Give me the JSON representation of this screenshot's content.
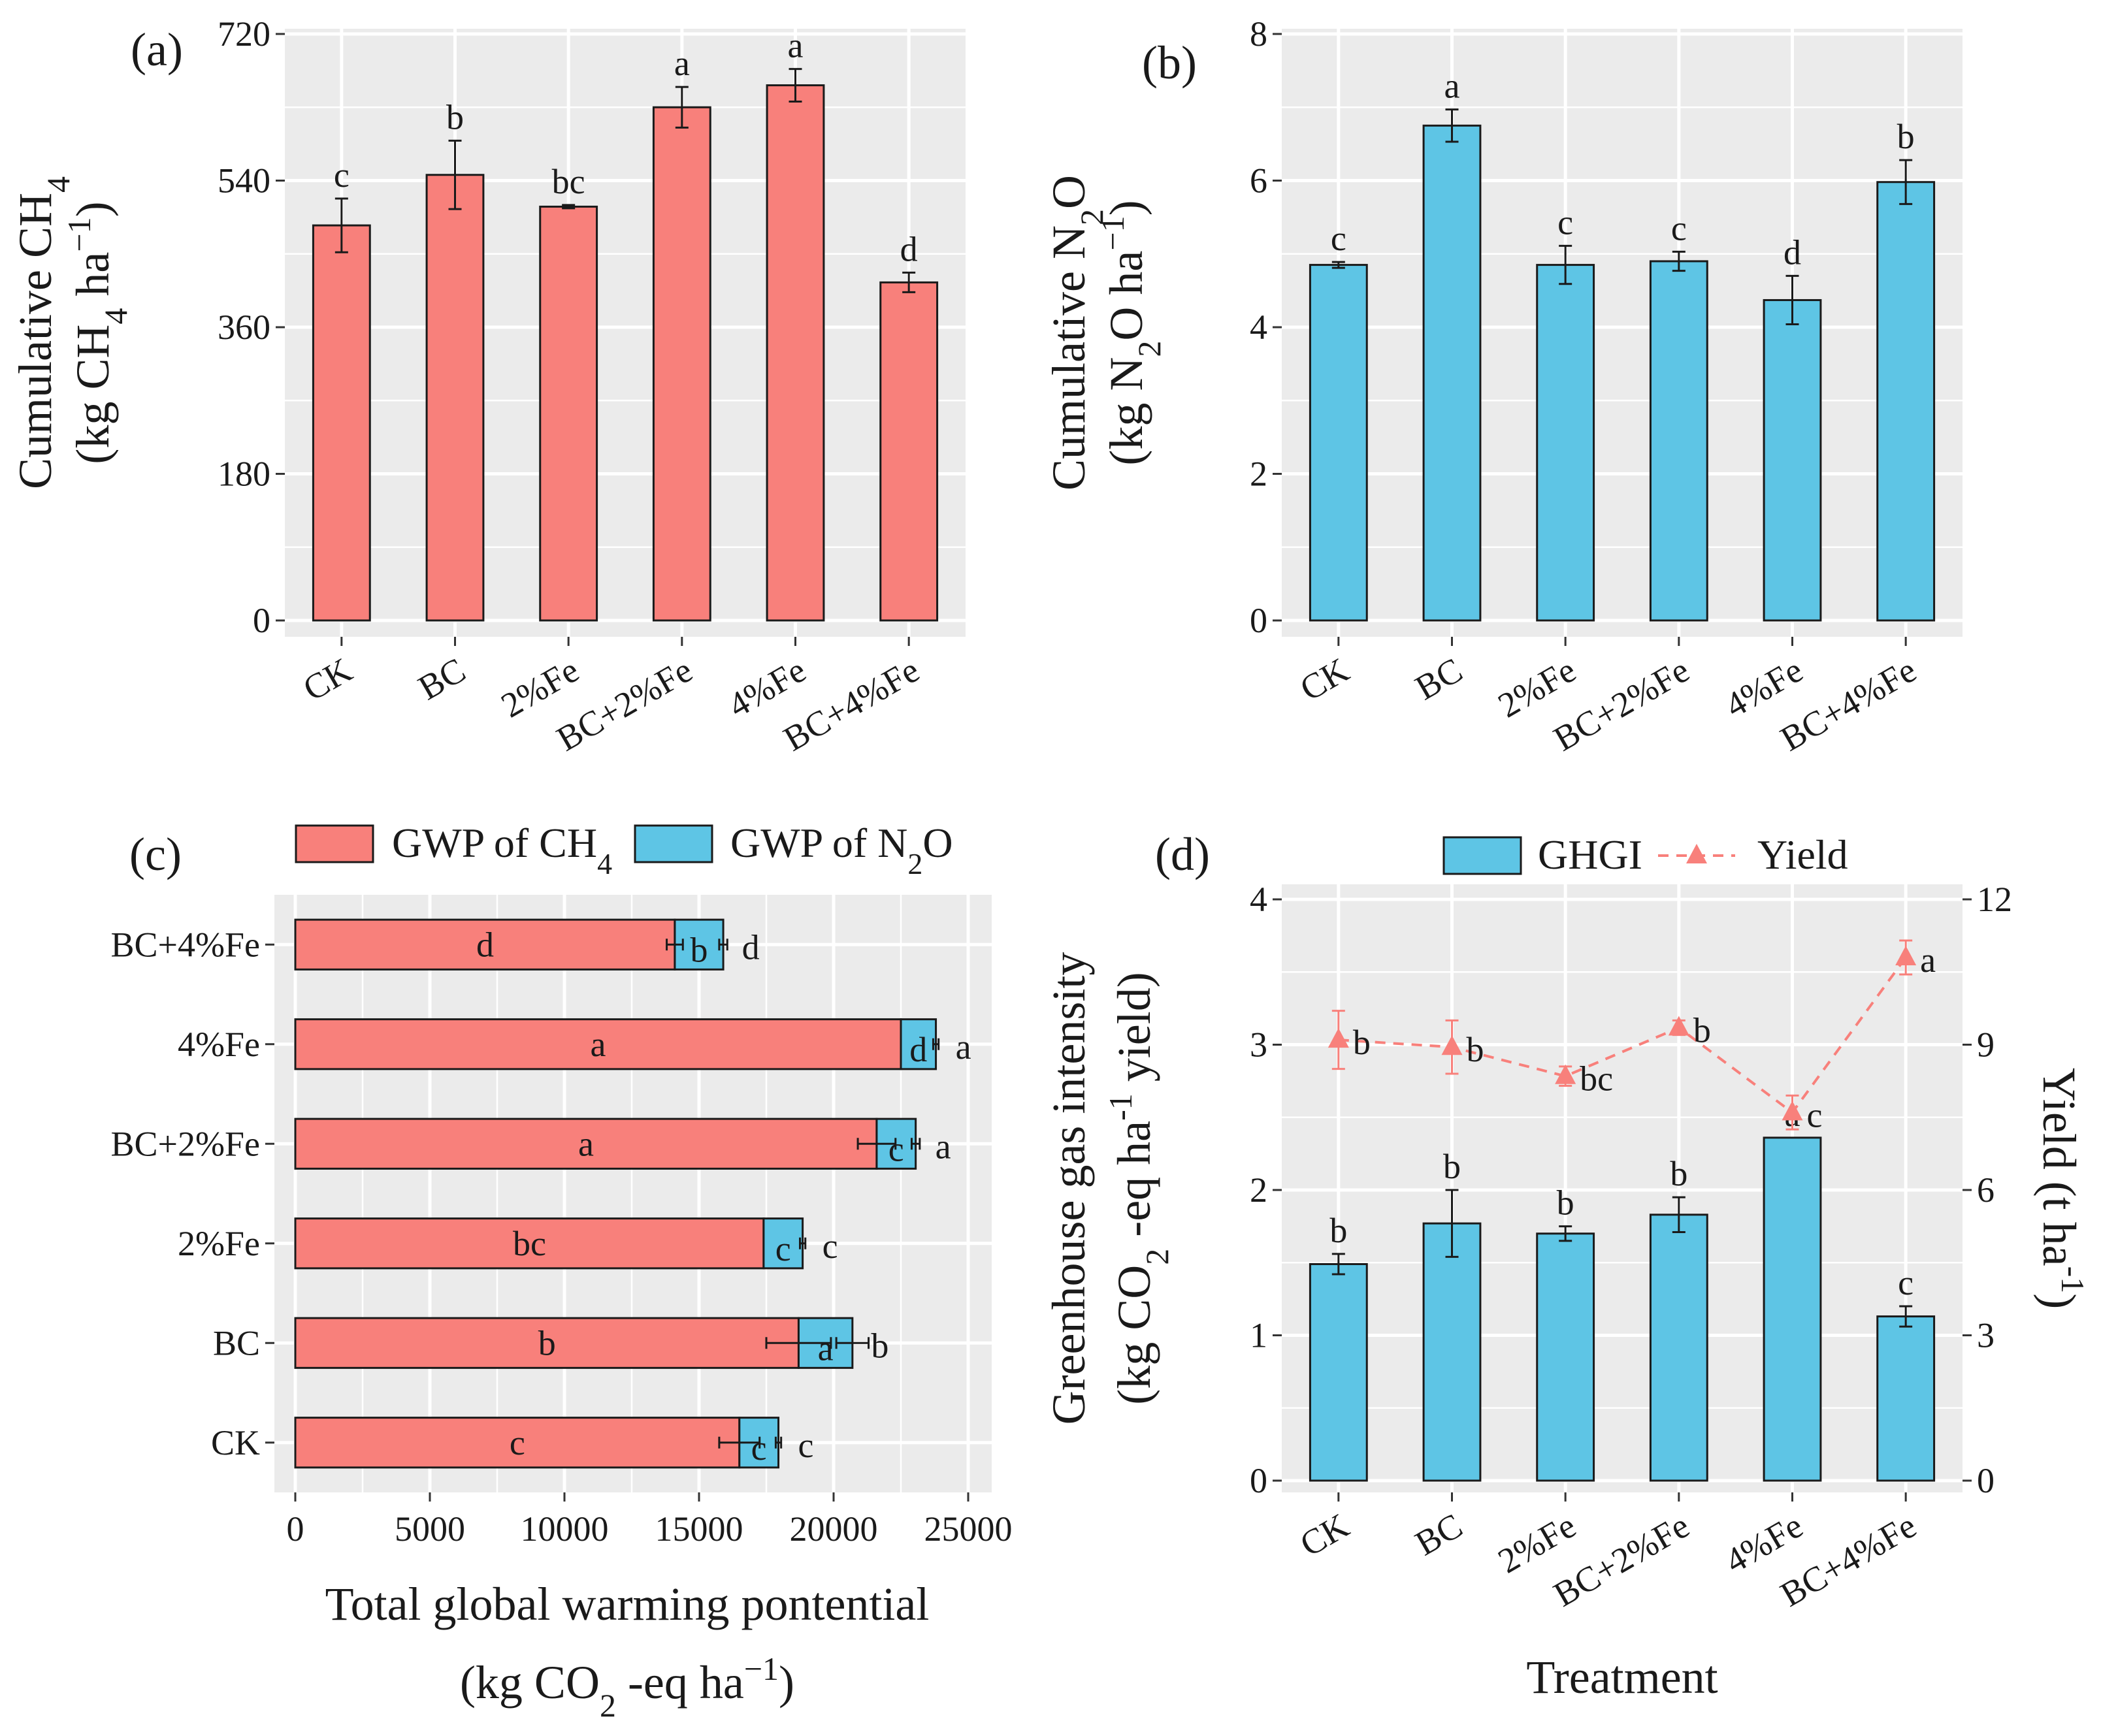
{
  "colors": {
    "ch4": "#f8807b",
    "n2o": "#5ec5e5",
    "yield": "#f8807b",
    "ghgi_letters": "#5ec5e5",
    "yield_letters": "#f8807b"
  },
  "chart_data": [
    {
      "id": "a",
      "type": "bar",
      "panel_label": "(a)",
      "categories": [
        "CK",
        "BC",
        "2%Fe",
        "BC+2%Fe",
        "4%Fe",
        "BC+4%Fe"
      ],
      "values": [
        485,
        547,
        508,
        630,
        657,
        415
      ],
      "errors": [
        33,
        42,
        2,
        25,
        20,
        12
      ],
      "letters": [
        "c",
        "b",
        "bc",
        "a",
        "a",
        "d"
      ],
      "ylabel_line1": "Cumulative CH",
      "ylabel_line1_sub": "4",
      "ylabel_line2_pre": "(kg CH",
      "ylabel_line2_sub": "4",
      "ylabel_line2_post": " ha",
      "ylabel_line2_sup": "−1",
      "ylabel_line2_end": ")",
      "ylim": [
        0,
        720
      ],
      "yticks": [
        0,
        180,
        360,
        540,
        720
      ],
      "ytick_labels": [
        "0",
        "180",
        "360",
        "540",
        "720"
      ]
    },
    {
      "id": "b",
      "type": "bar",
      "panel_label": "(b)",
      "categories": [
        "CK",
        "BC",
        "2%Fe",
        "BC+2%Fe",
        "4%Fe",
        "BC+4%Fe"
      ],
      "values": [
        4.85,
        6.75,
        4.85,
        4.9,
        4.37,
        5.98
      ],
      "errors": [
        0.04,
        0.22,
        0.26,
        0.13,
        0.33,
        0.3
      ],
      "letters": [
        "c",
        "a",
        "c",
        "c",
        "d",
        "b"
      ],
      "ylabel_line1": "Cumulative N",
      "ylabel_line1_sub": "2",
      "ylabel_line1_post": "O",
      "ylabel_line2_pre": "(kg N",
      "ylabel_line2_sub": "2",
      "ylabel_line2_post": "O ha",
      "ylabel_line2_sup": "−1",
      "ylabel_line2_end": ")",
      "ylim": [
        0,
        8
      ],
      "yticks": [
        0,
        2,
        4,
        6,
        8
      ],
      "ytick_labels": [
        "0",
        "2",
        "4",
        "6",
        "8"
      ]
    },
    {
      "id": "c",
      "type": "stacked_bar_horizontal",
      "panel_label": "(c)",
      "categories": [
        "CK",
        "BC",
        "2%Fe",
        "BC+2%Fe",
        "4%Fe",
        "BC+4%Fe"
      ],
      "series": [
        {
          "name": "GWP of CH4",
          "legend_pre": "GWP of CH",
          "legend_sub": "4",
          "values": [
            16500,
            18700,
            17400,
            21600,
            22500,
            14100
          ],
          "errors": [
            750,
            1200,
            0,
            700,
            0,
            300
          ],
          "letters": [
            "c",
            "b",
            "bc",
            "a",
            "a",
            "d"
          ]
        },
        {
          "name": "GWP of N2O",
          "legend_pre": "GWP of N",
          "legend_sub": "2",
          "legend_post": "O",
          "values": [
            1450,
            2000,
            1450,
            1450,
            1300,
            1800
          ],
          "errors": [
            100,
            600,
            100,
            150,
            100,
            150
          ],
          "letters": [
            "c",
            "a",
            "c",
            "c",
            "d",
            "b"
          ]
        }
      ],
      "total_letters": [
        "c",
        "b",
        "c",
        "a",
        "a",
        "d"
      ],
      "xlabel_line1": "Total global warming pontential",
      "xlabel_line2_pre": "(kg CO",
      "xlabel_line2_sub": "2",
      "xlabel_line2_post": " -eq ha",
      "xlabel_line2_sup": "−1",
      "xlabel_line2_end": ")",
      "xlim": [
        0,
        25000
      ],
      "xticks": [
        0,
        5000,
        10000,
        15000,
        20000,
        25000
      ],
      "xtick_labels": [
        "0",
        "5000",
        "10000",
        "15000",
        "20000",
        "25000"
      ]
    },
    {
      "id": "d",
      "type": "bar_line_dual_axis",
      "panel_label": "(d)",
      "categories": [
        "CK",
        "BC",
        "2%Fe",
        "BC+2%Fe",
        "4%Fe",
        "BC+4%Fe"
      ],
      "ghgi": {
        "name": "GHGI",
        "values": [
          1.49,
          1.77,
          1.7,
          1.83,
          2.36,
          1.13
        ],
        "errors": [
          0.07,
          0.23,
          0.05,
          0.12,
          0.0,
          0.07
        ],
        "letters": [
          "b",
          "b",
          "b",
          "b",
          "a",
          "c"
        ]
      },
      "yield": {
        "name": "Yield",
        "values": [
          9.1,
          8.95,
          8.35,
          9.35,
          7.6,
          10.8
        ],
        "errors": [
          0.6,
          0.55,
          0.2,
          0.15,
          0.35,
          0.35
        ],
        "letters": [
          "b",
          "b",
          "bc",
          "b",
          "c",
          "a"
        ]
      },
      "ylabel_line1": "Greenhouse gas intensity",
      "ylabel_line2_pre": "(kg CO",
      "ylabel_line2_sub": "2",
      "ylabel_line2_mid": " -eq ha",
      "ylabel_line2_sup": "-1",
      "ylabel_line2_post": " yield)",
      "y2label_pre": "Yield (t ha",
      "y2label_sup": "-1",
      "y2label_end": ")",
      "xlabel": "Treatment",
      "ylim": [
        0,
        4
      ],
      "yticks": [
        0,
        1,
        2,
        3,
        4
      ],
      "ytick_labels": [
        "0",
        "1",
        "2",
        "3",
        "4"
      ],
      "y2lim": [
        0,
        12
      ],
      "y2ticks": [
        0,
        3,
        6,
        9,
        12
      ],
      "y2tick_labels": [
        "0",
        "3",
        "6",
        "9",
        "12"
      ]
    }
  ]
}
